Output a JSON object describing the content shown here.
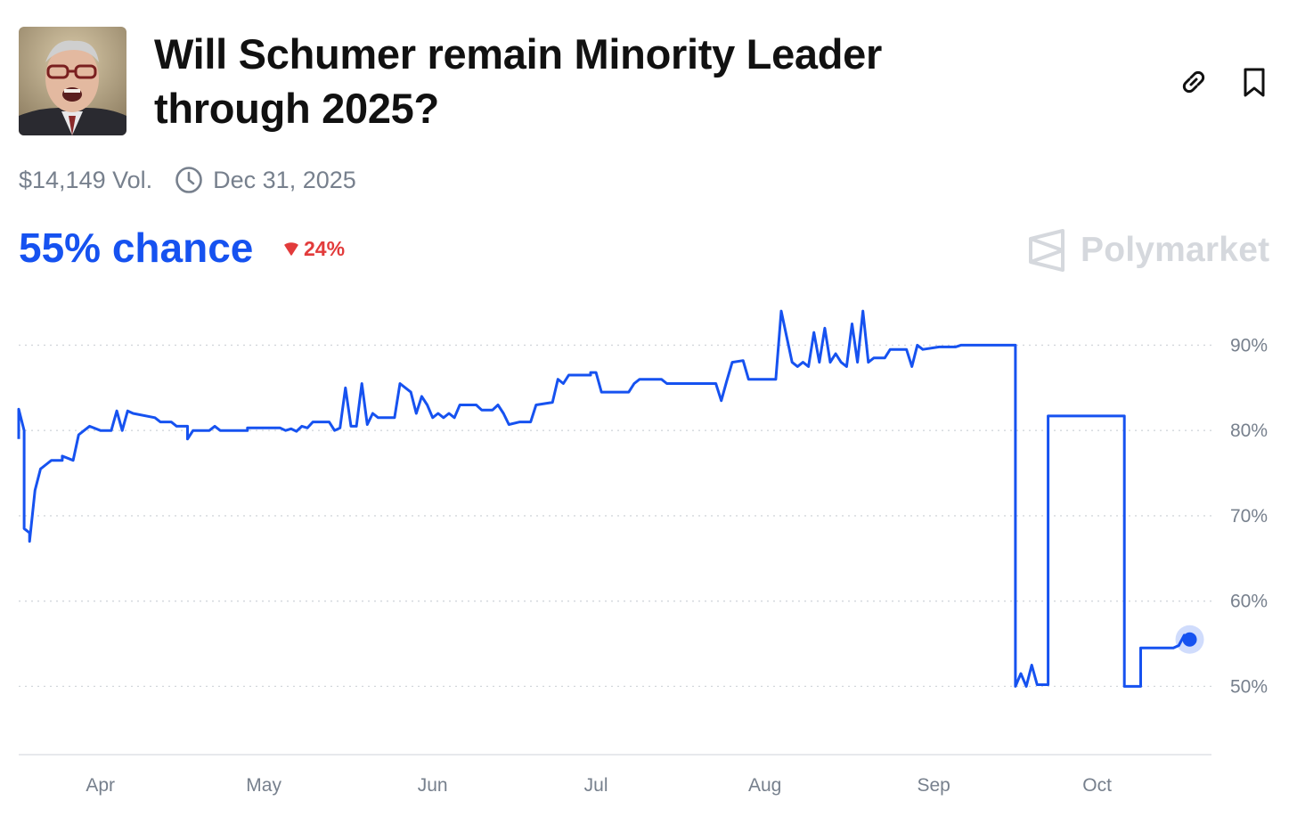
{
  "market": {
    "title": "Will Schumer remain Minority Leader through 2025?",
    "volume": "$14,149 Vol.",
    "end_date": "Dec 31, 2025",
    "chance": "55% chance",
    "change": "24%",
    "change_direction": "down",
    "brand": "Polymarket"
  },
  "icons": {
    "link": "link-icon",
    "bookmark": "bookmark-icon",
    "clock": "clock-icon",
    "brand_logo": "polymarket-logo-icon"
  },
  "colors": {
    "accent": "#1652f0",
    "negative": "#e23b3b",
    "muted": "#77808d",
    "brand": "#d5d8dd"
  },
  "chart_data": {
    "type": "line",
    "x_unit": "date (2025)",
    "x_axis_ticks": [
      "Apr",
      "May",
      "Jun",
      "Jul",
      "Aug",
      "Sep",
      "Oct"
    ],
    "y_axis_ticks": [
      "50%",
      "60%",
      "70%",
      "80%",
      "90%"
    ],
    "ylim": [
      42,
      96
    ],
    "grid": "horizontal dotted",
    "series": [
      {
        "color": "#1652f0",
        "points": [
          [
            "2025-03-17",
            79
          ],
          [
            "2025-03-17",
            82.5
          ],
          [
            "2025-03-18",
            80
          ],
          [
            "2025-03-18",
            68.5
          ],
          [
            "2025-03-19",
            68
          ],
          [
            "2025-03-19",
            67
          ],
          [
            "2025-03-20",
            73
          ],
          [
            "2025-03-21",
            75.5
          ],
          [
            "2025-03-22",
            76
          ],
          [
            "2025-03-23",
            76.5
          ],
          [
            "2025-03-25",
            76.5
          ],
          [
            "2025-03-25",
            77
          ],
          [
            "2025-03-27",
            76.5
          ],
          [
            "2025-03-28",
            79.5
          ],
          [
            "2025-03-29",
            80
          ],
          [
            "2025-03-30",
            80.5
          ],
          [
            "2025-04-01",
            80
          ],
          [
            "2025-04-03",
            80
          ],
          [
            "2025-04-04",
            82.3
          ],
          [
            "2025-04-05",
            80
          ],
          [
            "2025-04-06",
            82.3
          ],
          [
            "2025-04-07",
            82
          ],
          [
            "2025-04-11",
            81.5
          ],
          [
            "2025-04-12",
            81
          ],
          [
            "2025-04-14",
            81
          ],
          [
            "2025-04-15",
            80.5
          ],
          [
            "2025-04-17",
            80.5
          ],
          [
            "2025-04-17",
            79
          ],
          [
            "2025-04-18",
            80
          ],
          [
            "2025-04-21",
            80
          ],
          [
            "2025-04-22",
            80.5
          ],
          [
            "2025-04-23",
            80
          ],
          [
            "2025-04-28",
            80
          ],
          [
            "2025-04-28",
            80.3
          ],
          [
            "2025-05-04",
            80.3
          ],
          [
            "2025-05-05",
            80
          ],
          [
            "2025-05-06",
            80.2
          ],
          [
            "2025-05-07",
            79.9
          ],
          [
            "2025-05-08",
            80.5
          ],
          [
            "2025-05-09",
            80.3
          ],
          [
            "2025-05-10",
            81
          ],
          [
            "2025-05-13",
            81
          ],
          [
            "2025-05-14",
            80
          ],
          [
            "2025-05-15",
            80.3
          ],
          [
            "2025-05-16",
            85
          ],
          [
            "2025-05-17",
            80.5
          ],
          [
            "2025-05-18",
            80.5
          ],
          [
            "2025-05-19",
            85.5
          ],
          [
            "2025-05-20",
            80.7
          ],
          [
            "2025-05-21",
            82
          ],
          [
            "2025-05-22",
            81.5
          ],
          [
            "2025-05-25",
            81.5
          ],
          [
            "2025-05-26",
            85.5
          ],
          [
            "2025-05-27",
            85
          ],
          [
            "2025-05-28",
            84.5
          ],
          [
            "2025-05-29",
            82
          ],
          [
            "2025-05-30",
            84
          ],
          [
            "2025-05-31",
            83
          ],
          [
            "2025-06-01",
            81.5
          ],
          [
            "2025-06-02",
            82
          ],
          [
            "2025-06-03",
            81.5
          ],
          [
            "2025-06-04",
            82
          ],
          [
            "2025-06-05",
            81.5
          ],
          [
            "2025-06-06",
            83
          ],
          [
            "2025-06-09",
            83
          ],
          [
            "2025-06-10",
            82.4
          ],
          [
            "2025-06-12",
            82.4
          ],
          [
            "2025-06-13",
            83
          ],
          [
            "2025-06-14",
            82
          ],
          [
            "2025-06-15",
            80.7
          ],
          [
            "2025-06-17",
            81
          ],
          [
            "2025-06-19",
            81
          ],
          [
            "2025-06-20",
            83
          ],
          [
            "2025-06-23",
            83.3
          ],
          [
            "2025-06-24",
            86
          ],
          [
            "2025-06-25",
            85.5
          ],
          [
            "2025-06-26",
            86.5
          ],
          [
            "2025-06-30",
            86.5
          ],
          [
            "2025-06-30",
            86.8
          ],
          [
            "2025-07-01",
            86.8
          ],
          [
            "2025-07-02",
            84.5
          ],
          [
            "2025-07-07",
            84.5
          ],
          [
            "2025-07-08",
            85.5
          ],
          [
            "2025-07-09",
            86
          ],
          [
            "2025-07-13",
            86
          ],
          [
            "2025-07-14",
            85.5
          ],
          [
            "2025-07-23",
            85.5
          ],
          [
            "2025-07-24",
            83.5
          ],
          [
            "2025-07-25",
            85.8
          ],
          [
            "2025-07-26",
            88
          ],
          [
            "2025-07-28",
            88.2
          ],
          [
            "2025-07-29",
            86
          ],
          [
            "2025-08-03",
            86
          ],
          [
            "2025-08-04",
            94
          ],
          [
            "2025-08-05",
            91
          ],
          [
            "2025-08-06",
            88
          ],
          [
            "2025-08-07",
            87.5
          ],
          [
            "2025-08-08",
            88
          ],
          [
            "2025-08-09",
            87.5
          ],
          [
            "2025-08-10",
            91.5
          ],
          [
            "2025-08-11",
            88
          ],
          [
            "2025-08-12",
            92
          ],
          [
            "2025-08-13",
            88
          ],
          [
            "2025-08-14",
            89
          ],
          [
            "2025-08-15",
            88
          ],
          [
            "2025-08-16",
            87.5
          ],
          [
            "2025-08-17",
            92.5
          ],
          [
            "2025-08-18",
            88
          ],
          [
            "2025-08-19",
            94
          ],
          [
            "2025-08-20",
            88
          ],
          [
            "2025-08-21",
            88.5
          ],
          [
            "2025-08-23",
            88.5
          ],
          [
            "2025-08-24",
            89.5
          ],
          [
            "2025-08-27",
            89.5
          ],
          [
            "2025-08-28",
            87.5
          ],
          [
            "2025-08-29",
            90
          ],
          [
            "2025-08-30",
            89.5
          ],
          [
            "2025-09-02",
            89.8
          ],
          [
            "2025-09-05",
            89.8
          ],
          [
            "2025-09-06",
            90
          ],
          [
            "2025-09-16",
            90
          ],
          [
            "2025-09-16",
            50
          ],
          [
            "2025-09-17",
            51.5
          ],
          [
            "2025-09-18",
            50
          ],
          [
            "2025-09-19",
            52.5
          ],
          [
            "2025-09-20",
            50.2
          ],
          [
            "2025-09-22",
            50.2
          ],
          [
            "2025-09-22",
            81.7
          ],
          [
            "2025-10-06",
            81.7
          ],
          [
            "2025-10-06",
            50
          ],
          [
            "2025-10-09",
            50
          ],
          [
            "2025-10-09",
            54.5
          ],
          [
            "2025-10-15",
            54.5
          ],
          [
            "2025-10-16",
            54.8
          ],
          [
            "2025-10-17",
            56
          ],
          [
            "2025-10-18",
            55.5
          ]
        ]
      }
    ],
    "current_point": [
      "2025-10-18",
      55.5
    ]
  }
}
